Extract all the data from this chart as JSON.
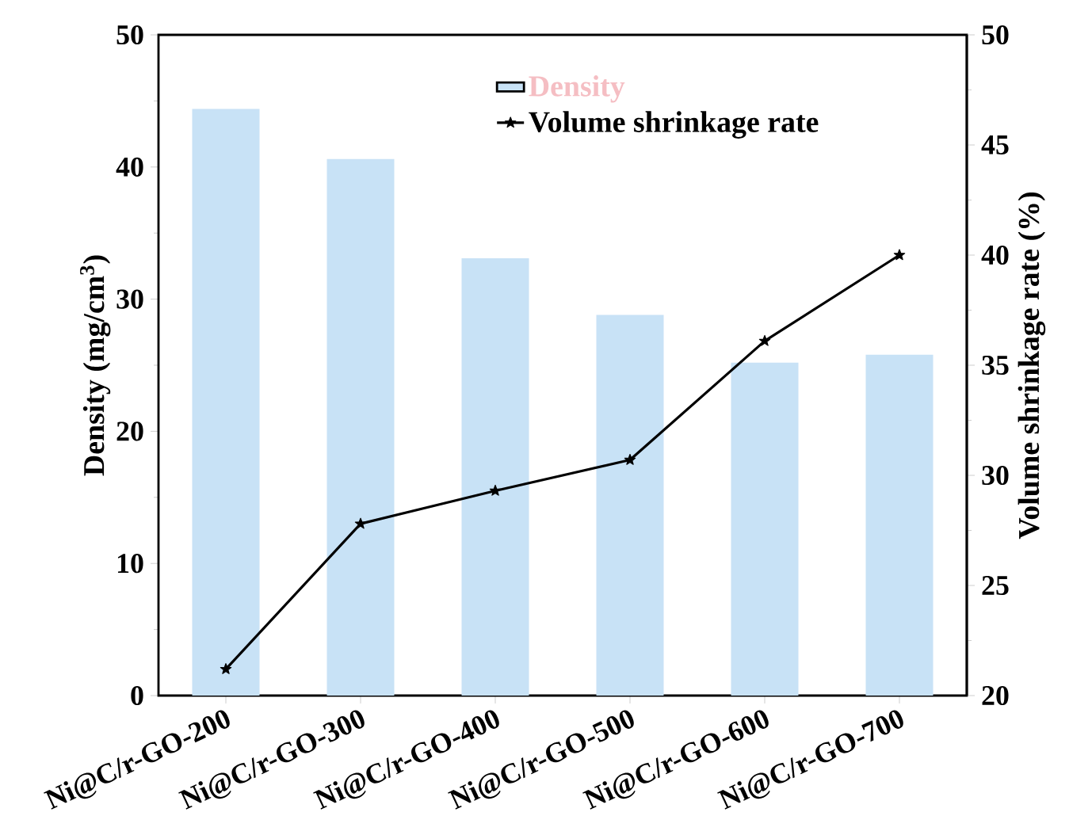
{
  "chart_data": {
    "type": "bar",
    "categories": [
      "Ni@C/r-GO-200",
      "Ni@C/r-GO-300",
      "Ni@C/r-GO-400",
      "Ni@C/r-GO-500",
      "Ni@C/r-GO-600",
      "Ni@C/r-GO-700"
    ],
    "series": [
      {
        "name": "Density",
        "color": "#c8e2f6",
        "values": [
          44.4,
          40.6,
          33.1,
          28.8,
          25.2,
          25.8
        ]
      },
      {
        "name": "Volume shrinkage rate",
        "type": "line",
        "axis": "y2",
        "color": "#000000",
        "marker": "star",
        "values": [
          21.2,
          27.8,
          29.3,
          30.7,
          36.1,
          40.0
        ]
      }
    ],
    "ylabel": "Density (mg/cm$^{3}$)",
    "y2label": "Volume shrinkage rate (%)",
    "ylim": [
      0,
      50
    ],
    "yticks": [
      0,
      10,
      20,
      30,
      40,
      50
    ],
    "y2lim": [
      20,
      50
    ],
    "y2ticks": [
      20,
      25,
      30,
      35,
      40,
      45,
      50
    ],
    "legend": "top",
    "grid": false
  }
}
